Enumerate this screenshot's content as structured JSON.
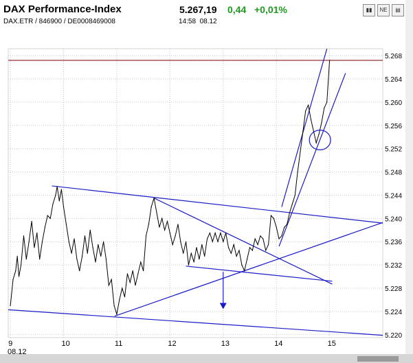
{
  "header": {
    "title": "DAX Performance-Index",
    "subtitle": "DAX.ETR / 846900 / DE0008469008",
    "price": "5.267,19",
    "change": "0,44",
    "change_pct": "+0,01%",
    "time": "14:58",
    "date": "08.12"
  },
  "toolbar": [
    {
      "name": "chart-icon",
      "label": "▮▮"
    },
    {
      "name": "news-icon",
      "label": "NE"
    },
    {
      "name": "table-icon",
      "label": "▤"
    }
  ],
  "colors": {
    "price_line": "#000000",
    "trend_lines": "#1a1ac8",
    "reference_line": "#8b1a1a",
    "grid": "#c8c8c8",
    "positive": "#1f9a1f"
  },
  "chart_data": {
    "type": "line",
    "title": "DAX Performance-Index",
    "xlabel": "",
    "ylabel": "",
    "x_ticks": [
      "9",
      "10",
      "11",
      "12",
      "13",
      "14",
      "15"
    ],
    "x_sub_label": "08.12",
    "y_ticks": [
      "5.268",
      "5.264",
      "5.260",
      "5.256",
      "5.252",
      "5.248",
      "5.244",
      "5.240",
      "5.236",
      "5.232",
      "5.228",
      "5.224",
      "5.220"
    ],
    "ylim": [
      5219.5,
      5269.2
    ],
    "xlim": [
      8.96,
      16.0
    ],
    "grid": true,
    "reference_line": {
      "y": 5267.2
    },
    "series": [
      {
        "values": [
          [
            9.0,
            5225.0
          ],
          [
            9.05,
            5229.5
          ],
          [
            9.1,
            5231.0
          ],
          [
            9.13,
            5233.5
          ],
          [
            9.16,
            5230.0
          ],
          [
            9.2,
            5232.0
          ],
          [
            9.25,
            5237.0
          ],
          [
            9.3,
            5233.0
          ],
          [
            9.35,
            5236.0
          ],
          [
            9.4,
            5239.5
          ],
          [
            9.45,
            5235.0
          ],
          [
            9.5,
            5237.5
          ],
          [
            9.55,
            5233.0
          ],
          [
            9.6,
            5236.0
          ],
          [
            9.65,
            5238.5
          ],
          [
            9.7,
            5240.5
          ],
          [
            9.75,
            5240.0
          ],
          [
            9.8,
            5242.5
          ],
          [
            9.85,
            5244.0
          ],
          [
            9.88,
            5245.5
          ],
          [
            9.92,
            5243.0
          ],
          [
            9.96,
            5245.0
          ],
          [
            10.0,
            5242.0
          ],
          [
            10.05,
            5239.0
          ],
          [
            10.1,
            5236.0
          ],
          [
            10.15,
            5234.0
          ],
          [
            10.2,
            5236.5
          ],
          [
            10.25,
            5233.0
          ],
          [
            10.3,
            5231.0
          ],
          [
            10.35,
            5233.5
          ],
          [
            10.4,
            5237.0
          ],
          [
            10.45,
            5234.0
          ],
          [
            10.5,
            5238.0
          ],
          [
            10.55,
            5235.0
          ],
          [
            10.6,
            5232.5
          ],
          [
            10.65,
            5235.5
          ],
          [
            10.7,
            5233.5
          ],
          [
            10.75,
            5236.0
          ],
          [
            10.8,
            5233.0
          ],
          [
            10.85,
            5228.5
          ],
          [
            10.9,
            5229.5
          ],
          [
            10.95,
            5225.0
          ],
          [
            11.0,
            5223.5
          ],
          [
            11.05,
            5226.0
          ],
          [
            11.1,
            5228.0
          ],
          [
            11.15,
            5226.5
          ],
          [
            11.2,
            5230.5
          ],
          [
            11.25,
            5229.0
          ],
          [
            11.3,
            5231.0
          ],
          [
            11.35,
            5228.5
          ],
          [
            11.4,
            5230.5
          ],
          [
            11.45,
            5232.5
          ],
          [
            11.5,
            5231.0
          ],
          [
            11.55,
            5237.0
          ],
          [
            11.6,
            5239.0
          ],
          [
            11.65,
            5242.0
          ],
          [
            11.7,
            5243.5
          ],
          [
            11.75,
            5241.0
          ],
          [
            11.8,
            5238.5
          ],
          [
            11.85,
            5240.0
          ],
          [
            11.9,
            5238.0
          ],
          [
            11.95,
            5239.5
          ],
          [
            12.0,
            5237.5
          ],
          [
            12.05,
            5235.5
          ],
          [
            12.1,
            5237.0
          ],
          [
            12.15,
            5239.0
          ],
          [
            12.2,
            5236.0
          ],
          [
            12.25,
            5234.0
          ],
          [
            12.3,
            5236.0
          ],
          [
            12.35,
            5232.0
          ],
          [
            12.4,
            5234.0
          ],
          [
            12.45,
            5232.5
          ],
          [
            12.5,
            5235.0
          ],
          [
            12.55,
            5233.0
          ],
          [
            12.6,
            5235.5
          ],
          [
            12.65,
            5233.5
          ],
          [
            12.7,
            5236.5
          ],
          [
            12.75,
            5237.5
          ],
          [
            12.8,
            5236.0
          ],
          [
            12.85,
            5237.5
          ],
          [
            12.9,
            5236.0
          ],
          [
            12.95,
            5237.5
          ],
          [
            13.0,
            5236.0
          ],
          [
            13.05,
            5237.5
          ],
          [
            13.1,
            5235.0
          ],
          [
            13.15,
            5234.0
          ],
          [
            13.2,
            5235.5
          ],
          [
            13.25,
            5233.5
          ],
          [
            13.3,
            5234.5
          ],
          [
            13.35,
            5232.0
          ],
          [
            13.4,
            5231.0
          ],
          [
            13.45,
            5233.0
          ],
          [
            13.5,
            5235.0
          ],
          [
            13.55,
            5234.5
          ],
          [
            13.6,
            5236.5
          ],
          [
            13.65,
            5235.5
          ],
          [
            13.7,
            5237.0
          ],
          [
            13.75,
            5236.5
          ],
          [
            13.8,
            5234.5
          ],
          [
            13.85,
            5235.5
          ],
          [
            13.9,
            5240.5
          ],
          [
            13.95,
            5240.0
          ],
          [
            14.0,
            5238.5
          ],
          [
            14.05,
            5236.5
          ],
          [
            14.1,
            5237.0
          ],
          [
            14.15,
            5238.5
          ],
          [
            14.2,
            5239.0
          ],
          [
            14.25,
            5241.0
          ],
          [
            14.3,
            5242.5
          ],
          [
            14.35,
            5244.0
          ],
          [
            14.4,
            5248.0
          ],
          [
            14.45,
            5251.5
          ],
          [
            14.5,
            5255.0
          ],
          [
            14.55,
            5258.5
          ],
          [
            14.6,
            5259.5
          ],
          [
            14.65,
            5257.0
          ],
          [
            14.7,
            5255.0
          ],
          [
            14.75,
            5253.0
          ],
          [
            14.8,
            5254.5
          ],
          [
            14.85,
            5256.5
          ],
          [
            14.9,
            5259.0
          ],
          [
            14.95,
            5260.0
          ],
          [
            15.0,
            5267.2
          ]
        ]
      }
    ],
    "trend_lines": [
      {
        "from": [
          8.96,
          5224.3
        ],
        "to": [
          16.0,
          5219.9
        ]
      },
      {
        "from": [
          9.78,
          5245.6
        ],
        "to": [
          16.0,
          5239.2
        ]
      },
      {
        "from": [
          10.96,
          5223.2
        ],
        "to": [
          16.0,
          5239.3
        ]
      },
      {
        "from": [
          11.7,
          5243.5
        ],
        "to": [
          15.05,
          5228.7
        ]
      },
      {
        "from": [
          12.3,
          5231.8
        ],
        "to": [
          15.05,
          5229.2
        ]
      },
      {
        "from": [
          14.1,
          5242.0
        ],
        "to": [
          14.95,
          5269.2
        ]
      },
      {
        "from": [
          14.05,
          5235.2
        ],
        "to": [
          15.3,
          5265.0
        ]
      }
    ],
    "annotations": [
      {
        "type": "ellipse",
        "center": [
          14.82,
          5253.5
        ],
        "rx": 0.2,
        "ry": 1.7
      },
      {
        "type": "arrow-down",
        "x": 13.0,
        "from_y": 5230.8,
        "to_y": 5224.4
      }
    ]
  }
}
